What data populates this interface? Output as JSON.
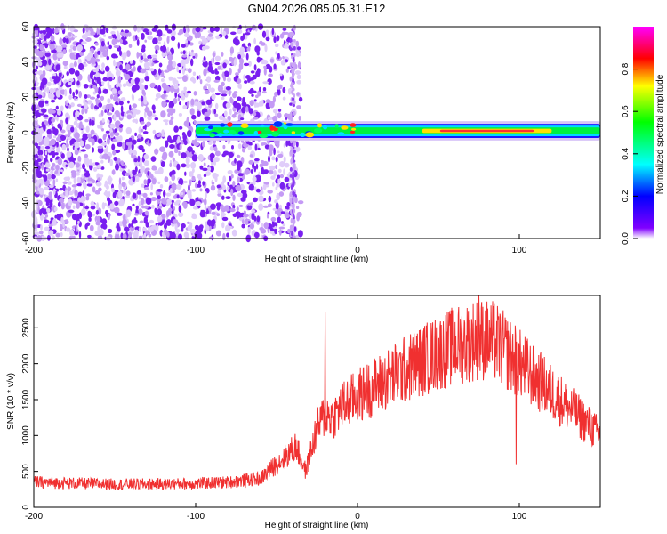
{
  "title": "GN04.2026.085.05.31.E12",
  "chart_data": [
    {
      "type": "heatmap",
      "xlabel": "Height of straight line (km)",
      "ylabel": "Frequency (Hz)",
      "xlim": [
        -200,
        150
      ],
      "ylim": [
        -60,
        60
      ],
      "x_ticks": [
        "-200",
        "-100",
        "0",
        "100"
      ],
      "y_ticks": [
        "-60",
        "-40",
        "-20",
        "0",
        "20",
        "40",
        "60"
      ],
      "colorbar": {
        "label": "Normalized spectral amplitude",
        "range": [
          0,
          1
        ],
        "ticks": [
          "0.0",
          "0.2",
          "0.4",
          "0.6",
          "0.8"
        ],
        "colors": [
          "#ffffff",
          "#8000ff",
          "#0000ff",
          "#00ffff",
          "#00ff00",
          "#ffff00",
          "#ff0000",
          "#ff00ff"
        ]
      },
      "features": {
        "noise_region_x": [
          -200,
          -35
        ],
        "vertical_artifact_x": -40,
        "band_start_x": -100,
        "band_center_freq_hz": 1,
        "peak_amplitude_region_x": [
          40,
          120
        ],
        "peak_amplitude": 0.9
      }
    },
    {
      "type": "line",
      "xlabel": "Height of straight line (km)",
      "ylabel": "SNR (10 * v/v)",
      "xlim": [
        -200,
        150
      ],
      "ylim": [
        0,
        2950
      ],
      "x_ticks": [
        "-200",
        "-100",
        "0",
        "100"
      ],
      "y_ticks": [
        "0",
        "500",
        "1000",
        "1500",
        "2000",
        "2500"
      ],
      "series": [
        {
          "color": "#f03030",
          "envelope_x": [
            -200,
            -150,
            -100,
            -80,
            -60,
            -45,
            -38,
            -32,
            -25,
            -20,
            -15,
            -10,
            0,
            20,
            40,
            60,
            75,
            85,
            95,
            110,
            125,
            140,
            150
          ],
          "envelope_y": [
            350,
            320,
            330,
            350,
            400,
            700,
            850,
            500,
            1100,
            1300,
            1250,
            1400,
            1550,
            1800,
            2050,
            2250,
            2350,
            2300,
            2100,
            1800,
            1500,
            1200,
            1000
          ],
          "spikes": [
            {
              "x": -20,
              "y": 2720
            },
            {
              "x": 75,
              "y": 2950
            },
            {
              "x": 98,
              "y": 600
            }
          ]
        }
      ]
    }
  ]
}
